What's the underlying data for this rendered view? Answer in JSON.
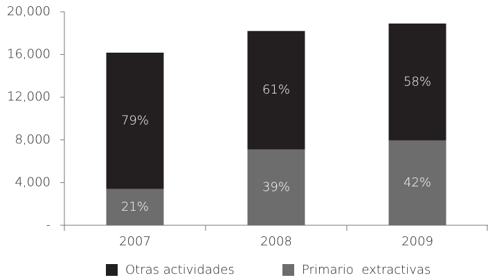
{
  "chart_data": {
    "type": "stacked_bar",
    "categories": [
      "2007",
      "2008",
      "2009"
    ],
    "series": [
      {
        "name": "Primario  extractivas",
        "color": "#6d6d6d",
        "values": [
          3400,
          7100,
          7950
        ],
        "labels": [
          "21%",
          "39%",
          "42%"
        ]
      },
      {
        "name": "Otras actividades",
        "color": "#231f20",
        "values": [
          12770,
          11100,
          10950
        ],
        "labels": [
          "79%",
          "61%",
          "58%"
        ]
      }
    ],
    "ylim": [
      0,
      20000
    ],
    "yticks": [
      {
        "value": 0,
        "label": "-"
      },
      {
        "value": 4000,
        "label": "4,000"
      },
      {
        "value": 8000,
        "label": "8,000"
      },
      {
        "value": 12000,
        "label": "12,000"
      },
      {
        "value": 16000,
        "label": "16,000"
      },
      {
        "value": 20000,
        "label": "20,000"
      }
    ],
    "legend_order": [
      1,
      0
    ]
  }
}
